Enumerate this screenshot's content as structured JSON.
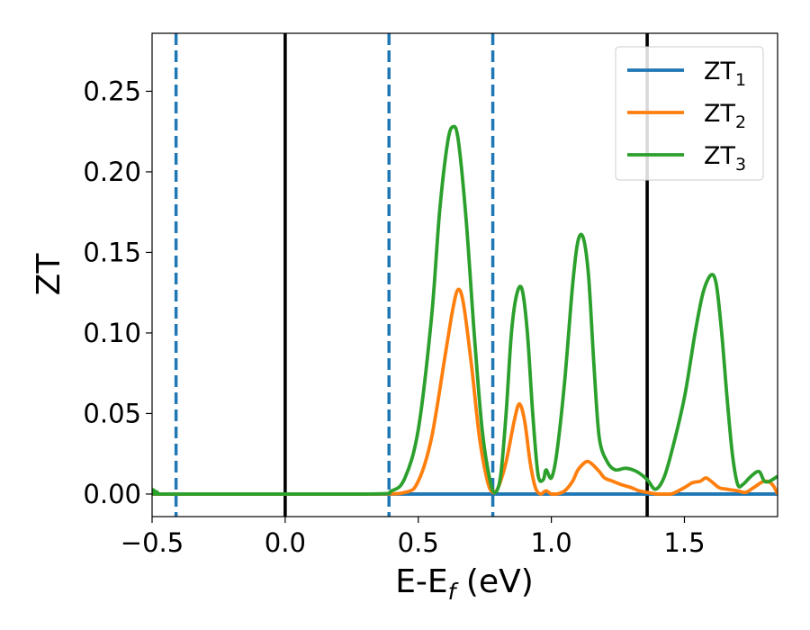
{
  "chart_data": {
    "type": "line",
    "xlabel": {
      "main": "E-E",
      "sub": "f",
      "tail": " (eV)"
    },
    "ylabel": "ZT",
    "xlim": [
      -0.5,
      1.85
    ],
    "ylim": [
      -0.014,
      0.286
    ],
    "x_ticks": [
      -0.5,
      0.0,
      0.5,
      1.0,
      1.5
    ],
    "x_tick_labels": [
      "−0.5",
      "0.0",
      "0.5",
      "1.0",
      "1.5"
    ],
    "y_ticks": [
      0.0,
      0.05,
      0.1,
      0.15,
      0.2,
      0.25
    ],
    "y_tick_labels": [
      "0.00",
      "0.05",
      "0.10",
      "0.15",
      "0.20",
      "0.25"
    ],
    "grid": false,
    "legend_position": "top-right",
    "vlines": [
      {
        "x": -0.41,
        "style": "dashed",
        "color": "#1f77b4"
      },
      {
        "x": 0.0,
        "style": "solid",
        "color": "#000000"
      },
      {
        "x": 0.39,
        "style": "dashed",
        "color": "#1f77b4"
      },
      {
        "x": 0.78,
        "style": "dashed",
        "color": "#1f77b4"
      },
      {
        "x": 1.36,
        "style": "solid",
        "color": "#000000"
      }
    ],
    "series": [
      {
        "name": "ZT",
        "sub": "1",
        "color": "#1f77b4",
        "x": [
          -0.5,
          1.85
        ],
        "y": [
          0.0,
          0.0
        ]
      },
      {
        "name": "ZT",
        "sub": "2",
        "color": "#ff7f0e",
        "x": [
          -0.5,
          0.3,
          0.45,
          0.5,
          0.55,
          0.6,
          0.63,
          0.65,
          0.67,
          0.7,
          0.73,
          0.76,
          0.78,
          0.8,
          0.83,
          0.86,
          0.88,
          0.9,
          0.92,
          0.94,
          0.96,
          0.98,
          1.0,
          1.02,
          1.05,
          1.08,
          1.1,
          1.13,
          1.15,
          1.18,
          1.2,
          1.23,
          1.26,
          1.3,
          1.33,
          1.36,
          1.4,
          1.45,
          1.5,
          1.53,
          1.56,
          1.58,
          1.6,
          1.63,
          1.66,
          1.7,
          1.73,
          1.76,
          1.8,
          1.83,
          1.85
        ],
        "y": [
          0.0,
          0.0,
          0.001,
          0.008,
          0.035,
          0.085,
          0.115,
          0.127,
          0.118,
          0.08,
          0.035,
          0.008,
          0.001,
          0.004,
          0.02,
          0.045,
          0.056,
          0.045,
          0.02,
          0.004,
          0.0,
          0.002,
          0.0,
          0.0,
          0.002,
          0.008,
          0.015,
          0.02,
          0.019,
          0.014,
          0.01,
          0.008,
          0.006,
          0.004,
          0.002,
          0.001,
          0.0,
          0.0,
          0.004,
          0.007,
          0.008,
          0.01,
          0.008,
          0.004,
          0.003,
          0.002,
          0.001,
          0.004,
          0.008,
          0.006,
          0.0
        ]
      },
      {
        "name": "ZT",
        "sub": "3",
        "color": "#2ca02c",
        "x": [
          -0.5,
          -0.48,
          -0.45,
          0.3,
          0.4,
          0.45,
          0.5,
          0.55,
          0.58,
          0.61,
          0.63,
          0.65,
          0.68,
          0.71,
          0.74,
          0.77,
          0.79,
          0.81,
          0.83,
          0.85,
          0.87,
          0.89,
          0.91,
          0.93,
          0.95,
          0.97,
          0.98,
          1.0,
          1.02,
          1.05,
          1.08,
          1.1,
          1.12,
          1.14,
          1.16,
          1.18,
          1.21,
          1.24,
          1.28,
          1.32,
          1.36,
          1.39,
          1.42,
          1.45,
          1.5,
          1.54,
          1.57,
          1.6,
          1.62,
          1.64,
          1.66,
          1.68,
          1.7,
          1.72,
          1.75,
          1.78,
          1.8,
          1.82,
          1.85
        ],
        "y": [
          0.003,
          0.001,
          0.0,
          0.0,
          0.002,
          0.01,
          0.04,
          0.11,
          0.175,
          0.218,
          0.228,
          0.22,
          0.17,
          0.1,
          0.04,
          0.008,
          0.001,
          0.012,
          0.05,
          0.1,
          0.124,
          0.127,
          0.1,
          0.05,
          0.012,
          0.009,
          0.015,
          0.01,
          0.025,
          0.07,
          0.13,
          0.157,
          0.159,
          0.135,
          0.08,
          0.035,
          0.02,
          0.015,
          0.016,
          0.014,
          0.009,
          0.003,
          0.009,
          0.025,
          0.06,
          0.1,
          0.125,
          0.136,
          0.13,
          0.1,
          0.06,
          0.025,
          0.006,
          0.006,
          0.011,
          0.014,
          0.008,
          0.008,
          0.011
        ]
      }
    ]
  }
}
